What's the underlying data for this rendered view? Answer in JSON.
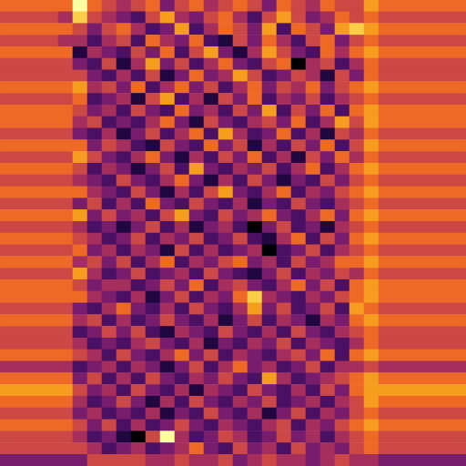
{
  "chart_data": {
    "type": "heatmap",
    "tick_labels": false,
    "color_range": [
      0,
      9
    ],
    "z": [
      [
        6,
        6,
        6,
        6,
        6,
        9,
        6,
        5,
        4,
        5,
        6,
        3,
        5,
        6,
        4,
        5,
        6,
        5,
        3,
        6,
        5,
        4,
        6,
        5,
        5,
        7,
        6,
        6,
        6,
        6,
        6,
        6
      ],
      [
        5,
        5,
        5,
        5,
        4,
        8,
        5,
        4,
        3,
        2,
        5,
        7,
        4,
        3,
        5,
        6,
        4,
        2,
        5,
        7,
        5,
        3,
        4,
        6,
        5,
        6,
        5,
        5,
        5,
        5,
        5,
        5
      ],
      [
        6,
        6,
        6,
        6,
        6,
        5,
        3,
        5,
        6,
        4,
        2,
        3,
        7,
        2,
        4,
        6,
        5,
        3,
        7,
        2,
        6,
        5,
        3,
        7,
        8,
        7,
        6,
        6,
        6,
        6,
        6,
        6
      ],
      [
        5,
        5,
        5,
        5,
        4,
        4,
        2,
        4,
        5,
        2,
        6,
        4,
        3,
        6,
        2,
        1,
        5,
        3,
        6,
        4,
        2,
        5,
        6,
        3,
        5,
        6,
        5,
        5,
        5,
        5,
        5,
        5
      ],
      [
        6,
        6,
        6,
        6,
        6,
        1,
        4,
        3,
        2,
        5,
        3,
        6,
        2,
        5,
        7,
        3,
        1,
        4,
        7,
        5,
        3,
        2,
        6,
        4,
        6,
        7,
        6,
        6,
        6,
        6,
        6,
        6
      ],
      [
        5,
        5,
        5,
        5,
        5,
        3,
        2,
        5,
        1,
        4,
        7,
        3,
        5,
        2,
        4,
        6,
        3,
        2,
        5,
        6,
        0,
        4,
        5,
        2,
        4,
        6,
        5,
        5,
        5,
        5,
        5,
        5
      ],
      [
        5,
        5,
        5,
        5,
        5,
        5,
        3,
        2,
        4,
        2,
        5,
        1,
        3,
        6,
        3,
        4,
        7,
        5,
        2,
        3,
        5,
        4,
        1,
        5,
        3,
        6,
        5,
        5,
        5,
        5,
        5,
        5
      ],
      [
        6,
        6,
        6,
        6,
        6,
        7,
        4,
        5,
        3,
        6,
        2,
        4,
        6,
        3,
        5,
        2,
        4,
        6,
        3,
        5,
        4,
        6,
        3,
        5,
        6,
        7,
        6,
        6,
        6,
        6,
        6,
        6
      ],
      [
        5,
        5,
        5,
        5,
        5,
        6,
        2,
        3,
        4,
        1,
        5,
        7,
        2,
        4,
        1,
        5,
        3,
        6,
        2,
        4,
        3,
        5,
        2,
        4,
        5,
        6,
        5,
        5,
        5,
        5,
        5,
        5
      ],
      [
        6,
        6,
        6,
        6,
        6,
        5,
        3,
        4,
        2,
        5,
        3,
        2,
        6,
        3,
        4,
        2,
        5,
        3,
        7,
        2,
        5,
        3,
        6,
        2,
        6,
        7,
        6,
        6,
        6,
        6,
        6,
        6
      ],
      [
        6,
        6,
        6,
        6,
        6,
        4,
        5,
        2,
        3,
        2,
        4,
        6,
        3,
        1,
        5,
        3,
        2,
        4,
        5,
        3,
        6,
        2,
        4,
        7,
        5,
        7,
        6,
        6,
        6,
        6,
        6,
        6
      ],
      [
        5,
        5,
        5,
        5,
        5,
        3,
        2,
        4,
        1,
        3,
        5,
        2,
        4,
        6,
        2,
        7,
        4,
        2,
        3,
        6,
        2,
        4,
        1,
        5,
        4,
        6,
        5,
        5,
        5,
        5,
        5,
        5
      ],
      [
        6,
        6,
        6,
        6,
        6,
        6,
        3,
        5,
        4,
        2,
        1,
        5,
        3,
        2,
        6,
        3,
        5,
        1,
        4,
        2,
        5,
        3,
        6,
        2,
        5,
        7,
        6,
        6,
        6,
        6,
        6,
        6
      ],
      [
        5,
        5,
        5,
        5,
        5,
        7,
        5,
        3,
        2,
        4,
        6,
        3,
        1,
        4,
        2,
        5,
        3,
        6,
        2,
        4,
        1,
        5,
        3,
        6,
        4,
        6,
        5,
        5,
        5,
        5,
        5,
        5
      ],
      [
        6,
        6,
        6,
        6,
        6,
        5,
        2,
        4,
        3,
        1,
        3,
        5,
        2,
        7,
        3,
        2,
        4,
        3,
        5,
        2,
        4,
        6,
        2,
        4,
        6,
        7,
        6,
        6,
        6,
        6,
        6,
        6
      ],
      [
        5,
        5,
        5,
        5,
        5,
        4,
        3,
        2,
        5,
        3,
        2,
        4,
        6,
        3,
        1,
        4,
        2,
        5,
        3,
        1,
        3,
        2,
        5,
        3,
        5,
        6,
        5,
        5,
        5,
        5,
        5,
        5
      ],
      [
        6,
        6,
        6,
        6,
        6,
        6,
        4,
        3,
        2,
        5,
        3,
        1,
        4,
        2,
        5,
        7,
        3,
        2,
        4,
        6,
        2,
        4,
        3,
        5,
        6,
        7,
        6,
        6,
        6,
        6,
        6,
        6
      ],
      [
        5,
        5,
        5,
        5,
        5,
        3,
        5,
        2,
        4,
        2,
        6,
        3,
        2,
        5,
        3,
        2,
        4,
        1,
        3,
        2,
        5,
        3,
        2,
        4,
        5,
        6,
        5,
        5,
        5,
        5,
        5,
        5
      ],
      [
        6,
        6,
        6,
        6,
        6,
        7,
        3,
        5,
        3,
        4,
        2,
        5,
        7,
        3,
        2,
        5,
        3,
        4,
        6,
        3,
        2,
        4,
        6,
        3,
        6,
        7,
        6,
        6,
        6,
        6,
        6,
        6
      ],
      [
        5,
        5,
        5,
        5,
        5,
        4,
        2,
        3,
        1,
        3,
        5,
        2,
        4,
        1,
        3,
        4,
        2,
        0,
        3,
        5,
        2,
        3,
        1,
        4,
        5,
        6,
        5,
        5,
        5,
        5,
        5,
        5
      ],
      [
        6,
        6,
        6,
        6,
        6,
        5,
        4,
        2,
        3,
        5,
        2,
        4,
        3,
        5,
        2,
        3,
        5,
        2,
        1,
        4,
        6,
        2,
        5,
        3,
        6,
        7,
        6,
        6,
        6,
        6,
        6,
        6
      ],
      [
        5,
        5,
        5,
        5,
        5,
        6,
        3,
        4,
        2,
        4,
        3,
        1,
        5,
        2,
        4,
        2,
        3,
        4,
        0,
        2,
        3,
        5,
        2,
        4,
        5,
        6,
        5,
        5,
        5,
        5,
        5,
        5
      ],
      [
        6,
        6,
        6,
        6,
        6,
        4,
        5,
        3,
        5,
        2,
        4,
        6,
        2,
        4,
        3,
        5,
        6,
        3,
        4,
        2,
        5,
        3,
        4,
        6,
        6,
        7,
        6,
        6,
        6,
        6,
        6,
        6
      ],
      [
        5,
        5,
        5,
        5,
        5,
        7,
        4,
        2,
        3,
        5,
        2,
        3,
        4,
        2,
        5,
        3,
        2,
        1,
        3,
        5,
        2,
        4,
        3,
        5,
        4,
        6,
        5,
        5,
        5,
        5,
        5,
        5
      ],
      [
        6,
        6,
        6,
        6,
        6,
        5,
        3,
        4,
        4,
        2,
        3,
        5,
        3,
        6,
        2,
        4,
        5,
        3,
        2,
        4,
        6,
        3,
        5,
        2,
        6,
        7,
        6,
        6,
        6,
        6,
        6,
        6
      ],
      [
        6,
        6,
        6,
        6,
        6,
        6,
        4,
        3,
        2,
        4,
        1,
        3,
        5,
        2,
        4,
        3,
        6,
        8,
        4,
        3,
        2,
        4,
        3,
        5,
        6,
        7,
        6,
        6,
        6,
        6,
        6,
        6
      ],
      [
        5,
        5,
        5,
        5,
        5,
        3,
        2,
        4,
        6,
        3,
        2,
        4,
        2,
        5,
        3,
        2,
        4,
        7,
        3,
        5,
        2,
        3,
        5,
        2,
        7,
        6,
        5,
        5,
        5,
        5,
        5,
        5
      ],
      [
        6,
        6,
        6,
        6,
        6,
        4,
        5,
        2,
        4,
        2,
        3,
        5,
        3,
        2,
        4,
        1,
        3,
        5,
        2,
        4,
        3,
        1,
        4,
        3,
        6,
        7,
        6,
        6,
        6,
        6,
        6,
        6
      ],
      [
        5,
        5,
        5,
        5,
        5,
        2,
        3,
        5,
        3,
        5,
        2,
        1,
        4,
        3,
        2,
        5,
        3,
        2,
        4,
        2,
        5,
        3,
        2,
        4,
        5,
        6,
        5,
        5,
        5,
        5,
        5,
        5
      ],
      [
        5,
        5,
        5,
        5,
        5,
        4,
        2,
        3,
        2,
        4,
        5,
        3,
        2,
        4,
        1,
        3,
        2,
        4,
        3,
        5,
        2,
        4,
        3,
        2,
        4,
        6,
        5,
        5,
        5,
        5,
        5,
        5
      ],
      [
        6,
        6,
        6,
        6,
        6,
        5,
        4,
        2,
        5,
        3,
        2,
        4,
        6,
        3,
        5,
        2,
        4,
        3,
        2,
        4,
        5,
        3,
        6,
        2,
        6,
        7,
        6,
        6,
        6,
        6,
        6,
        6
      ],
      [
        4,
        4,
        4,
        4,
        4,
        2,
        3,
        4,
        2,
        4,
        3,
        1,
        3,
        5,
        2,
        4,
        6,
        3,
        4,
        2,
        3,
        5,
        2,
        4,
        4,
        5,
        4,
        4,
        4,
        4,
        4,
        4
      ],
      [
        6,
        6,
        6,
        6,
        6,
        3,
        5,
        2,
        4,
        2,
        5,
        3,
        2,
        4,
        3,
        5,
        3,
        2,
        7,
        4,
        2,
        3,
        4,
        5,
        6,
        7,
        6,
        6,
        6,
        6,
        6,
        6
      ],
      [
        7,
        7,
        7,
        7,
        7,
        5,
        3,
        4,
        2,
        5,
        3,
        2,
        4,
        1,
        4,
        3,
        2,
        5,
        3,
        2,
        4,
        2,
        5,
        3,
        6,
        7,
        7,
        7,
        7,
        7,
        7,
        7
      ],
      [
        6,
        6,
        6,
        6,
        6,
        4,
        2,
        3,
        5,
        3,
        1,
        4,
        2,
        5,
        3,
        2,
        4,
        3,
        5,
        2,
        3,
        4,
        2,
        4,
        5,
        7,
        6,
        6,
        6,
        6,
        6,
        6
      ],
      [
        5,
        5,
        5,
        5,
        5,
        3,
        4,
        2,
        3,
        2,
        4,
        1,
        3,
        2,
        5,
        3,
        2,
        4,
        1,
        3,
        5,
        2,
        4,
        3,
        5,
        6,
        5,
        5,
        5,
        5,
        5,
        5
      ],
      [
        6,
        6,
        6,
        6,
        6,
        5,
        3,
        5,
        2,
        4,
        2,
        3,
        5,
        3,
        2,
        4,
        3,
        2,
        4,
        5,
        2,
        4,
        3,
        5,
        6,
        7,
        6,
        6,
        6,
        6,
        6,
        6
      ],
      [
        5,
        5,
        5,
        5,
        5,
        4,
        2,
        3,
        1,
        0,
        5,
        9,
        4,
        2,
        3,
        5,
        4,
        2,
        3,
        5,
        3,
        4,
        2,
        4,
        5,
        6,
        5,
        5,
        5,
        5,
        5,
        5
      ],
      [
        5,
        5,
        5,
        5,
        5,
        5,
        4,
        2,
        3,
        4,
        2,
        3,
        4,
        6,
        3,
        2,
        5,
        3,
        4,
        2,
        5,
        3,
        4,
        3,
        5,
        6,
        5,
        5,
        5,
        5,
        5,
        5
      ],
      [
        3,
        3,
        3,
        3,
        3,
        3,
        5,
        5,
        5,
        5,
        4,
        4,
        5,
        4,
        4,
        5,
        3,
        4,
        5,
        4,
        4,
        3,
        4,
        5,
        4,
        4,
        3,
        3,
        3,
        3,
        3,
        3
      ]
    ]
  }
}
